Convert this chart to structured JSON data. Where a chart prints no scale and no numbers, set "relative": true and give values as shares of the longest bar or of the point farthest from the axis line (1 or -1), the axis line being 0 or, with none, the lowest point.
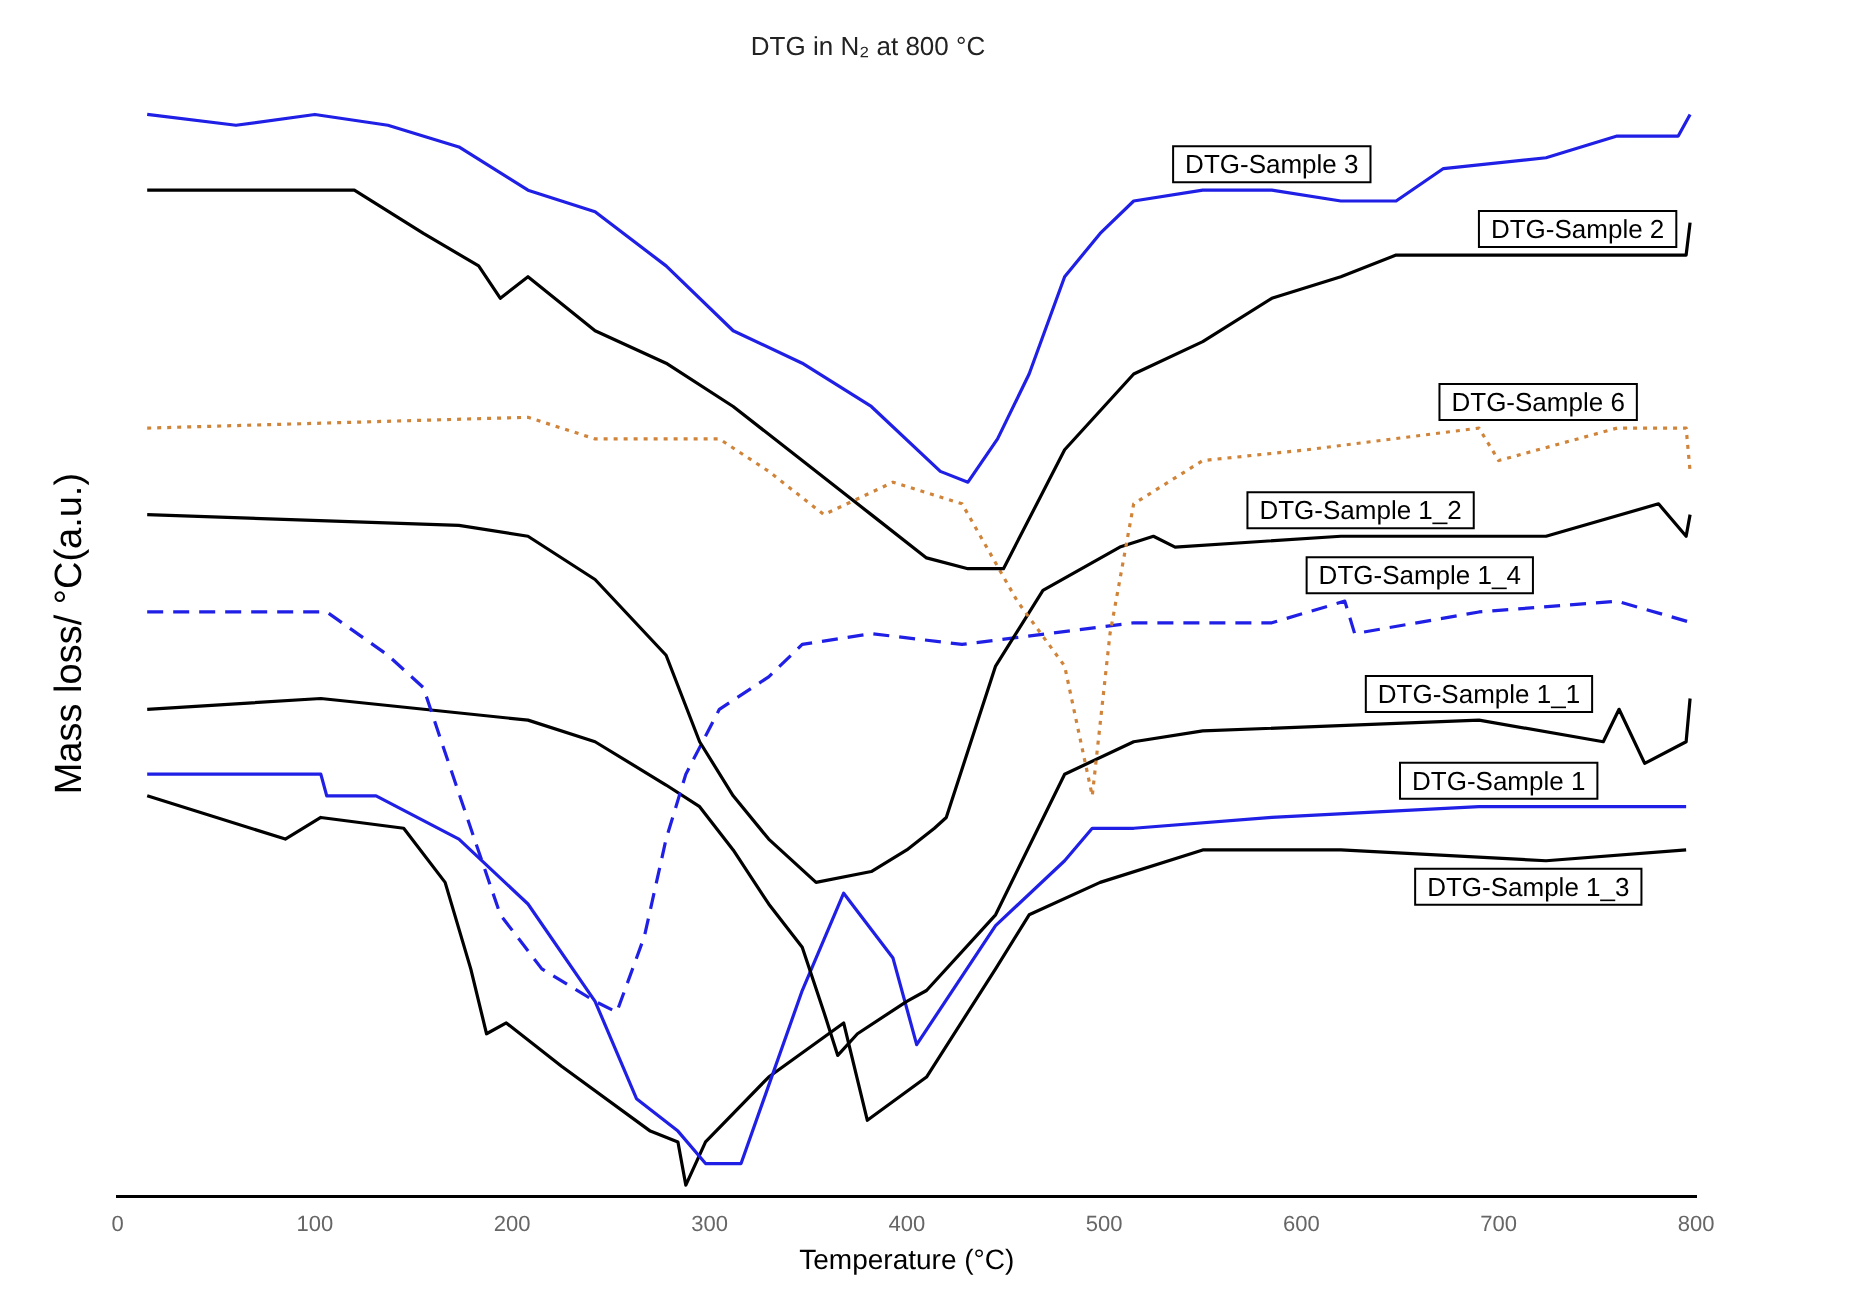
{
  "chart_data": {
    "type": "line",
    "title": "DTG in N₂ at 800 °C",
    "xlabel": "Temperature (°C)",
    "ylabel": "Mass loss/ °C(a.u.)",
    "relative": true,
    "xlim": [
      0,
      800
    ],
    "xticks": [
      0,
      100,
      200,
      300,
      400,
      500,
      600,
      700,
      800
    ],
    "tick_labels": "x",
    "grid": false,
    "legend": false,
    "marker": "none",
    "series": [
      {
        "name": "DTG-Sample 3",
        "color": "#1f1fe6",
        "line_style": "solid",
        "x": [
          15,
          60,
          100,
          137,
          173,
          208,
          242,
          278,
          312,
          347,
          382,
          417,
          431,
          446,
          462,
          480,
          498,
          515,
          550,
          585,
          620,
          648,
          672,
          724,
          760,
          791,
          797
        ],
        "values": [
          1.0,
          0.99,
          1.0,
          0.99,
          0.97,
          0.93,
          0.91,
          0.86,
          0.8,
          0.77,
          0.73,
          0.67,
          0.66,
          0.7,
          0.76,
          0.85,
          0.89,
          0.92,
          0.93,
          0.93,
          0.92,
          0.92,
          0.95,
          0.96,
          0.98,
          0.98,
          1.0
        ]
      },
      {
        "name": "DTG-Sample 2",
        "color": "#000000",
        "line_style": "solid",
        "x": [
          15,
          60,
          120,
          155,
          183,
          194,
          208,
          242,
          278,
          312,
          347,
          382,
          410,
          431,
          449,
          480,
          515,
          550,
          585,
          620,
          648,
          690,
          795,
          797
        ],
        "values": [
          0.93,
          0.93,
          0.93,
          0.89,
          0.86,
          0.83,
          0.85,
          0.8,
          0.77,
          0.73,
          0.68,
          0.63,
          0.59,
          0.58,
          0.58,
          0.69,
          0.76,
          0.79,
          0.83,
          0.85,
          0.87,
          0.87,
          0.87,
          0.9
        ]
      },
      {
        "name": "DTG-Sample 6",
        "color": "#d0843a",
        "line_style": "dotted",
        "x": [
          15,
          208,
          242,
          295,
          305,
          330,
          358,
          393,
          428,
          456,
          480,
          494,
          503,
          515,
          550,
          603,
          690,
          700,
          760,
          795,
          797
        ],
        "values": [
          0.71,
          0.72,
          0.7,
          0.7,
          0.7,
          0.67,
          0.63,
          0.66,
          0.64,
          0.55,
          0.49,
          0.37,
          0.52,
          0.64,
          0.68,
          0.69,
          0.71,
          0.68,
          0.71,
          0.71,
          0.67
        ]
      },
      {
        "name": "DTG-Sample 1_2",
        "color": "#000000",
        "line_style": "solid",
        "x": [
          15,
          173,
          208,
          242,
          278,
          295,
          312,
          330,
          354,
          382,
          400,
          414,
          420,
          445,
          469,
          508,
          525,
          536,
          620,
          724,
          781,
          795,
          797
        ],
        "values": [
          0.63,
          0.62,
          0.61,
          0.57,
          0.5,
          0.42,
          0.37,
          0.33,
          0.29,
          0.3,
          0.32,
          0.34,
          0.35,
          0.49,
          0.56,
          0.6,
          0.61,
          0.6,
          0.61,
          0.61,
          0.64,
          0.61,
          0.63
        ]
      },
      {
        "name": "DTG-Sample 1_4",
        "color": "#1f1fe6",
        "line_style": "dashed",
        "x": [
          15,
          106,
          137,
          155,
          166,
          179,
          194,
          215,
          242,
          253,
          267,
          278,
          288,
          305,
          330,
          347,
          382,
          428,
          515,
          585,
          622,
          627,
          690,
          760,
          798
        ],
        "values": [
          0.54,
          0.54,
          0.5,
          0.47,
          0.41,
          0.34,
          0.26,
          0.21,
          0.18,
          0.17,
          0.24,
          0.33,
          0.39,
          0.45,
          0.48,
          0.51,
          0.52,
          0.51,
          0.53,
          0.53,
          0.55,
          0.52,
          0.54,
          0.55,
          0.53
        ]
      },
      {
        "name": "DTG-Sample 1_1",
        "color": "#000000",
        "line_style": "solid",
        "x": [
          15,
          103,
          208,
          242,
          278,
          295,
          312,
          330,
          347,
          358,
          365,
          375,
          400,
          410,
          445,
          480,
          515,
          550,
          690,
          753,
          761,
          774,
          795,
          797
        ],
        "values": [
          0.45,
          0.46,
          0.44,
          0.42,
          0.38,
          0.36,
          0.32,
          0.27,
          0.23,
          0.17,
          0.13,
          0.15,
          0.18,
          0.19,
          0.26,
          0.39,
          0.42,
          0.43,
          0.44,
          0.42,
          0.45,
          0.4,
          0.42,
          0.46
        ]
      },
      {
        "name": "DTG-Sample 1",
        "color": "#1f1fe6",
        "line_style": "solid",
        "x": [
          15,
          103,
          106,
          131,
          173,
          208,
          242,
          263,
          284,
          298,
          316,
          347,
          368,
          393,
          405,
          445,
          480,
          494,
          515,
          585,
          690,
          795
        ],
        "values": [
          0.39,
          0.39,
          0.37,
          0.37,
          0.33,
          0.27,
          0.18,
          0.09,
          0.06,
          0.03,
          0.03,
          0.19,
          0.28,
          0.22,
          0.14,
          0.25,
          0.31,
          0.34,
          0.34,
          0.35,
          0.36,
          0.36
        ]
      },
      {
        "name": "DTG-Sample 1_3",
        "color": "#000000",
        "line_style": "solid",
        "x": [
          15,
          85,
          103,
          145,
          166,
          179,
          187,
          197,
          225,
          270,
          284,
          288,
          298,
          330,
          368,
          380,
          410,
          445,
          462,
          498,
          550,
          620,
          724,
          795
        ],
        "values": [
          0.37,
          0.33,
          0.35,
          0.34,
          0.29,
          0.21,
          0.15,
          0.16,
          0.12,
          0.06,
          0.05,
          0.01,
          0.05,
          0.11,
          0.16,
          0.07,
          0.11,
          0.21,
          0.26,
          0.29,
          0.32,
          0.32,
          0.31,
          0.32
        ]
      }
    ]
  }
}
